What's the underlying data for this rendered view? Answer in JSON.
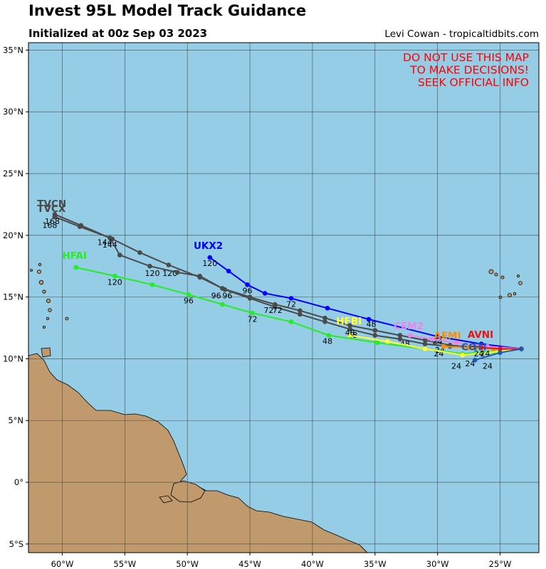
{
  "header": {
    "title": "Invest 95L Model Track Guidance",
    "subtitle": "Initialized at 00z Sep 03 2023",
    "credit": "Levi Cowan - tropicaltidbits.com"
  },
  "warning": [
    "DO NOT USE THIS MAP",
    "TO MAKE DECISIONS!",
    "SEEK OFFICIAL INFO"
  ],
  "colors": {
    "ocean": "#94CDE5",
    "land": "#C09A6C",
    "warning": "#FF0000",
    "grid": "#4a4a4a"
  },
  "axes": {
    "lon_ticks": [
      {
        "lon": -60,
        "label": "60°W"
      },
      {
        "lon": -55,
        "label": "55°W"
      },
      {
        "lon": -50,
        "label": "50°W"
      },
      {
        "lon": -45,
        "label": "45°W"
      },
      {
        "lon": -40,
        "label": "40°W"
      },
      {
        "lon": -35,
        "label": "35°W"
      },
      {
        "lon": -30,
        "label": "30°W"
      },
      {
        "lon": -25,
        "label": "25°W"
      }
    ],
    "lat_ticks": [
      {
        "lat": 35,
        "label": "35°N"
      },
      {
        "lat": 30,
        "label": "30°N"
      },
      {
        "lat": 25,
        "label": "25°N"
      },
      {
        "lat": 20,
        "label": "20°N"
      },
      {
        "lat": 15,
        "label": "15°N"
      },
      {
        "lat": 10,
        "label": "10°N"
      },
      {
        "lat": 5,
        "label": "5°N"
      },
      {
        "lat": 0,
        "label": "0°"
      },
      {
        "lat": -5,
        "label": "5°S"
      }
    ],
    "lon_range": [
      -62.7,
      -21.9
    ],
    "lat_range": [
      -5.7,
      35.6
    ]
  },
  "models": [
    {
      "name": "TVCN",
      "color": "#4A4A4A",
      "points": [
        [
          -23.3,
          10.8
        ],
        [
          -25.0,
          10.9
        ],
        [
          -27.0,
          11.0
        ],
        [
          -29.0,
          11.0
        ],
        [
          -31.0,
          11.2
        ],
        [
          -33.0,
          11.6
        ],
        [
          -35.0,
          11.9
        ],
        [
          -37.0,
          12.4
        ],
        [
          -39.0,
          13.0
        ],
        [
          -41.0,
          13.6
        ],
        [
          -43.0,
          14.2
        ],
        [
          -45.0,
          14.9
        ],
        [
          -47.0,
          15.6
        ],
        [
          -49.0,
          16.6
        ],
        [
          -51.5,
          17.6
        ],
        [
          -53.8,
          18.6
        ],
        [
          -56.0,
          19.7
        ],
        [
          -58.5,
          20.8
        ],
        [
          -60.6,
          21.7
        ]
      ],
      "hour_labels": [
        {
          "text": "24",
          "at": [
            -29.9,
            10.2
          ]
        },
        {
          "text": "48",
          "at": [
            -36.8,
            11.7
          ]
        },
        {
          "text": "72",
          "at": [
            -43.5,
            13.7
          ]
        },
        {
          "text": "96",
          "at": [
            -47.7,
            14.9
          ]
        },
        {
          "text": "120",
          "at": [
            -51.4,
            16.7
          ]
        },
        {
          "text": "144",
          "at": [
            -56.2,
            19.0
          ]
        },
        {
          "text": "168",
          "at": [
            -60.8,
            20.9
          ]
        }
      ],
      "label_at": [
        -62.0,
        22.3
      ]
    },
    {
      "name": "TVCX",
      "color": "#4A4A4A",
      "points": [
        [
          -23.3,
          10.8
        ],
        [
          -25.0,
          10.9
        ],
        [
          -27.0,
          10.9
        ],
        [
          -29.0,
          11.1
        ],
        [
          -31.0,
          11.5
        ],
        [
          -33.0,
          11.9
        ],
        [
          -35.0,
          12.3
        ],
        [
          -37.0,
          12.7
        ],
        [
          -39.0,
          13.3
        ],
        [
          -41.0,
          13.9
        ],
        [
          -43.0,
          14.4
        ],
        [
          -45.0,
          15.0
        ],
        [
          -47.2,
          15.7
        ],
        [
          -49.0,
          16.7
        ],
        [
          -50.8,
          17.0
        ],
        [
          -53.0,
          17.5
        ],
        [
          -55.4,
          18.4
        ],
        [
          -56.2,
          19.8
        ],
        [
          -58.6,
          20.7
        ],
        [
          -60.6,
          21.5
        ]
      ],
      "hour_labels": [
        {
          "text": "24",
          "at": [
            -29.8,
            10.5
          ]
        },
        {
          "text": "48",
          "at": [
            -32.6,
            11.0
          ]
        },
        {
          "text": "72",
          "at": [
            -42.8,
            13.7
          ]
        },
        {
          "text": "96",
          "at": [
            -46.8,
            14.9
          ]
        },
        {
          "text": "120",
          "at": [
            -52.8,
            16.7
          ]
        },
        {
          "text": "144",
          "at": [
            -56.6,
            19.2
          ]
        },
        {
          "text": "168",
          "at": [
            -61.0,
            20.6
          ]
        }
      ],
      "label_at": [
        -62.0,
        21.9
      ]
    },
    {
      "name": "UKX2",
      "color": "#0000FF",
      "points": [
        [
          -23.3,
          10.8
        ],
        [
          -26.5,
          11.2
        ],
        [
          -30.0,
          11.8
        ],
        [
          -35.5,
          13.2
        ],
        [
          -38.8,
          14.1
        ],
        [
          -41.7,
          14.9
        ],
        [
          -43.8,
          15.3
        ],
        [
          -45.2,
          16.0
        ],
        [
          -46.7,
          17.1
        ],
        [
          -48.2,
          18.2
        ]
      ],
      "hour_labels": [
        {
          "text": "24",
          "at": [
            -30.0,
            11.2
          ]
        },
        {
          "text": "48",
          "at": [
            -35.3,
            12.6
          ]
        },
        {
          "text": "72",
          "at": [
            -41.7,
            14.2
          ]
        },
        {
          "text": "96",
          "at": [
            -45.2,
            15.3
          ]
        },
        {
          "text": "120",
          "at": [
            -48.2,
            17.5
          ]
        }
      ],
      "label_at": [
        -49.5,
        18.9
      ]
    },
    {
      "name": "HFAI",
      "color": "#22EE22",
      "points": [
        [
          -23.3,
          10.8
        ],
        [
          -25.5,
          10.6
        ],
        [
          -28.0,
          10.4
        ],
        [
          -31.0,
          10.8
        ],
        [
          -34.8,
          11.3
        ],
        [
          -38.7,
          11.9
        ],
        [
          -41.7,
          13.0
        ],
        [
          -44.8,
          13.7
        ],
        [
          -47.2,
          14.4
        ],
        [
          -49.9,
          15.2
        ],
        [
          -52.8,
          16.0
        ],
        [
          -55.8,
          16.7
        ],
        [
          -58.9,
          17.4
        ]
      ],
      "hour_labels": [
        {
          "text": "24",
          "at": [
            -27.4,
            9.4
          ]
        },
        {
          "text": "48",
          "at": [
            -38.8,
            11.2
          ]
        },
        {
          "text": "72",
          "at": [
            -44.8,
            13.0
          ]
        },
        {
          "text": "96",
          "at": [
            -49.9,
            14.5
          ]
        },
        {
          "text": "120",
          "at": [
            -55.8,
            16.0
          ]
        }
      ],
      "label_at": [
        -60.0,
        18.1
      ]
    },
    {
      "name": "HFBI",
      "color": "#FFFF33",
      "points": [
        [
          -23.3,
          10.8
        ],
        [
          -25.0,
          10.6
        ],
        [
          -28.0,
          10.3
        ],
        [
          -31.0,
          10.8
        ],
        [
          -34.0,
          11.4
        ],
        [
          -37.0,
          11.9
        ]
      ],
      "hour_labels": [
        {
          "text": "24",
          "at": [
            -26.2,
            10.2
          ]
        },
        {
          "text": "48",
          "at": [
            -37.0,
            11.9
          ]
        }
      ],
      "label_at": [
        -38.1,
        12.8
      ]
    },
    {
      "name": "CEM2",
      "color": "#EE82EE",
      "points": [
        [
          -23.3,
          10.8
        ],
        [
          -26.0,
          11.0
        ],
        [
          -28.5,
          11.3
        ],
        [
          -30.5,
          11.6
        ],
        [
          -32.2,
          11.9
        ]
      ],
      "hour_labels": [],
      "label_at": [
        -33.5,
        12.4
      ]
    },
    {
      "name": "AEMI",
      "color": "#FF8C00",
      "points": [
        [
          -23.3,
          10.8
        ],
        [
          -25.5,
          10.8
        ],
        [
          -27.5,
          10.9
        ],
        [
          -29.5,
          11.0
        ]
      ],
      "hour_labels": [],
      "label_at": [
        -30.3,
        11.6
      ]
    },
    {
      "name": "AVNI",
      "color": "#EE1111",
      "points": [
        [
          -23.3,
          10.8
        ],
        [
          -25.0,
          10.8
        ],
        [
          -26.5,
          10.9
        ]
      ],
      "hour_labels": [
        {
          "text": "24",
          "at": [
            -26.7,
            10.2
          ]
        }
      ],
      "label_at": [
        -27.6,
        11.7
      ]
    },
    {
      "name": "COTI",
      "color": "#1E5AA8",
      "points": [
        [
          -23.3,
          10.8
        ],
        [
          -25.0,
          10.5
        ],
        [
          -27.0,
          9.9
        ]
      ],
      "hour_labels": [
        {
          "text": "24",
          "at": [
            -28.5,
            9.2
          ]
        },
        {
          "text": "24",
          "at": [
            -26.0,
            9.2
          ]
        }
      ],
      "label_at": [
        -28.1,
        10.7
      ]
    }
  ]
}
